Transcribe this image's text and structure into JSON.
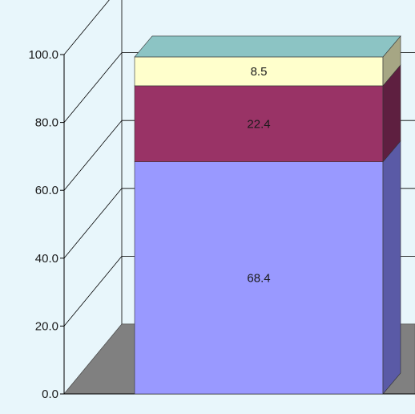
{
  "chart_data": {
    "type": "bar",
    "stacked": true,
    "three_d": true,
    "categories": [
      ""
    ],
    "series": [
      {
        "values": [
          68.4
        ],
        "color": "#9999ff",
        "side_color": "#5a5aa6",
        "top_color": "#9999ff"
      },
      {
        "values": [
          22.4
        ],
        "color": "#993366",
        "side_color": "#5e1f40",
        "top_color": "#993366"
      },
      {
        "values": [
          8.5
        ],
        "color": "#ffffcc",
        "side_color": "#a6a684",
        "top_color": "#ffffcc"
      }
    ],
    "top_cap_color": "#8cc4c4",
    "floor_color": "#808080",
    "y_axis": {
      "min": 0,
      "max": 100,
      "ticks": [
        "0.0",
        "20.0",
        "40.0",
        "60.0",
        "80.0",
        "100.0"
      ]
    },
    "data_labels": [
      "68.4",
      "22.4",
      "8.5"
    ],
    "grid": true,
    "legend": "none",
    "title": "",
    "xlabel": "",
    "ylabel": ""
  }
}
